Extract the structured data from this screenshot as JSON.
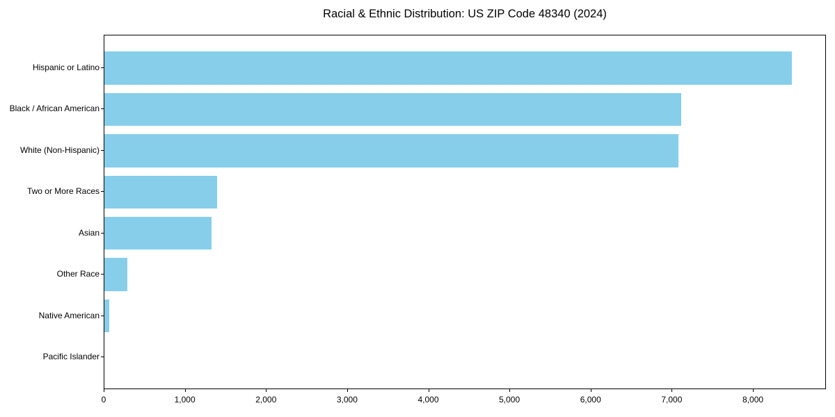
{
  "chart_data": {
    "type": "bar",
    "orientation": "horizontal",
    "title": "Racial & Ethnic Distribution: US ZIP Code 48340 (2024)",
    "categories": [
      "Hispanic or Latino",
      "Black / African American",
      "White (Non-Hispanic)",
      "Two or More Races",
      "Asian",
      "Other Race",
      "Native American",
      "Pacific Islander"
    ],
    "values": [
      8470,
      7110,
      7070,
      1390,
      1320,
      280,
      60,
      0
    ],
    "xlabel": "",
    "ylabel": "",
    "xlim": [
      0,
      8900
    ],
    "x_ticks": [
      0,
      1000,
      2000,
      3000,
      4000,
      5000,
      6000,
      7000,
      8000
    ],
    "x_tick_labels": [
      "0",
      "1,000",
      "2,000",
      "3,000",
      "4,000",
      "5,000",
      "6,000",
      "7,000",
      "8,000"
    ],
    "bar_color": "#87CEEB",
    "text_color": "#000000",
    "grid": false,
    "legend": null
  }
}
